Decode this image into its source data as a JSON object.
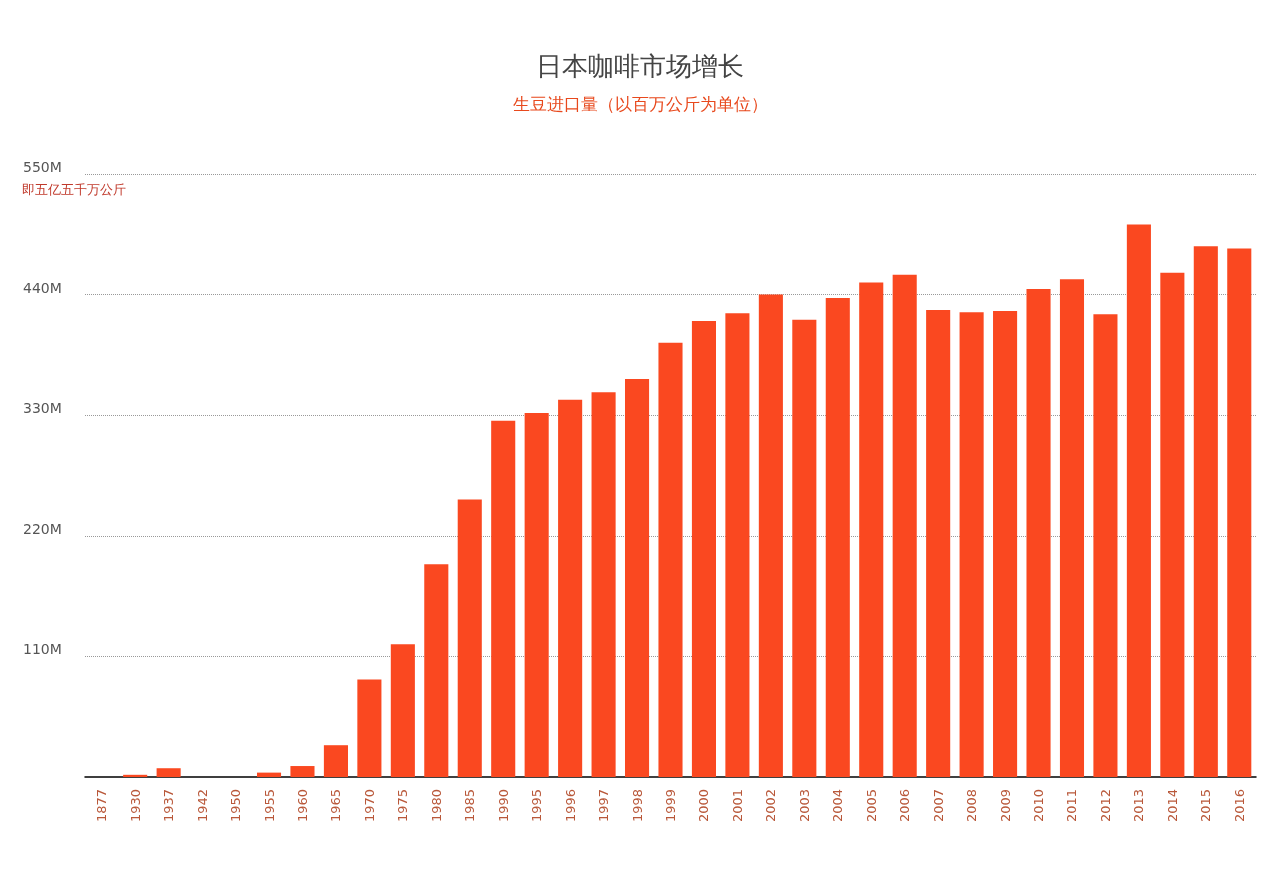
{
  "chart_data": {
    "type": "bar",
    "title": "日本咖啡市场增长",
    "subtitle": "生豆进口量（以百万公斤为单位）",
    "annotations": [
      "即五亿五千万公斤"
    ],
    "categories": [
      "1877",
      "1930",
      "1937",
      "1942",
      "1950",
      "1955",
      "1960",
      "1965",
      "1970",
      "1975",
      "1980",
      "1985",
      "1990",
      "1995",
      "1996",
      "1997",
      "1998",
      "1999",
      "2000",
      "2001",
      "2002",
      "2003",
      "2004",
      "2005",
      "2006",
      "2007",
      "2008",
      "2009",
      "2010",
      "2011",
      "2012",
      "2013",
      "2014",
      "2015",
      "2016"
    ],
    "values": [
      0,
      2,
      8,
      0,
      0,
      4,
      10,
      29,
      89,
      121,
      194,
      253,
      325,
      332,
      344,
      351,
      363,
      396,
      416,
      423,
      440,
      417,
      437,
      451,
      458,
      426,
      424,
      425,
      445,
      454,
      422,
      504,
      460,
      484,
      482
    ],
    "color": "#fa4820",
    "ylim": [
      0,
      550
    ],
    "yticks": [
      {
        "value": 110,
        "label": "110M"
      },
      {
        "value": 220,
        "label": "220M"
      },
      {
        "value": 330,
        "label": "330M"
      },
      {
        "value": 440,
        "label": "440M"
      },
      {
        "value": 550,
        "label": "550M"
      }
    ],
    "grid": "y"
  }
}
